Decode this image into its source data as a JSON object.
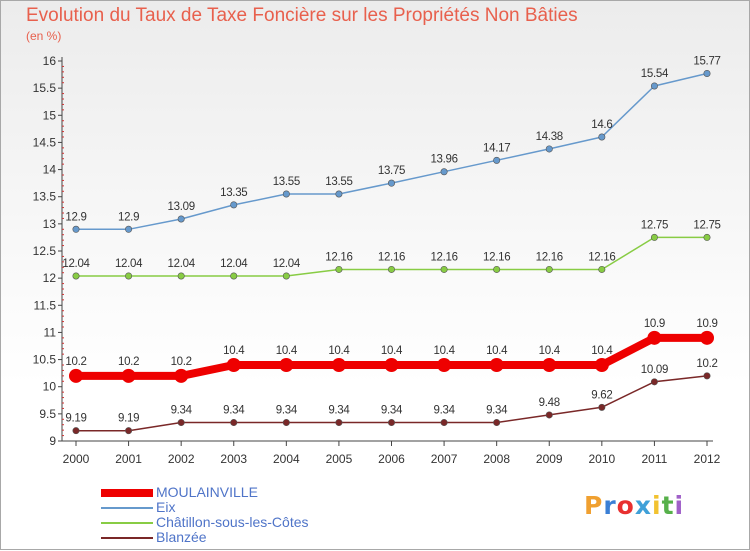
{
  "title": "Evolution du Taux de Taxe Foncière sur les Propriétés Non Bâties",
  "unit_label": "(en %)",
  "logo": {
    "text": "Proxiti",
    "letters": [
      "P",
      "r",
      "o",
      "x",
      "i",
      "t",
      "i"
    ],
    "colors": [
      "#f0a030",
      "#3a7fd5",
      "#e83030",
      "#3fa0d8",
      "#f2c230",
      "#56b04a",
      "#a060c8"
    ]
  },
  "chart_data": {
    "type": "line",
    "title": "Evolution du Taux de Taxe Foncière sur les Propriétés Non Bâties",
    "ylabel": "(en %)",
    "xlabel": "",
    "x": [
      "2000",
      "2001",
      "2002",
      "2003",
      "2004",
      "2005",
      "2006",
      "2007",
      "2008",
      "2009",
      "2010",
      "2011",
      "2012"
    ],
    "ylim": [
      9,
      16
    ],
    "y_ticks": [
      "9",
      "9.5",
      "10",
      "10.5",
      "11",
      "11.5",
      "12",
      "12.5",
      "13",
      "13.5",
      "14",
      "14.5",
      "15",
      "15.5",
      "16"
    ],
    "grid": false,
    "legend_position": "bottom-left",
    "series": [
      {
        "name": "MOULAINVILLE",
        "color": "#ee0000",
        "values": [
          10.2,
          10.2,
          10.2,
          10.4,
          10.4,
          10.4,
          10.4,
          10.4,
          10.4,
          10.4,
          10.4,
          10.9,
          10.9
        ],
        "labels": [
          "10.2",
          "10.2",
          "10.2",
          "10.4",
          "10.4",
          "10.4",
          "10.4",
          "10.4",
          "10.4",
          "10.4",
          "10.4",
          "10.9",
          "10.9"
        ]
      },
      {
        "name": "Eix",
        "color": "#6699cc",
        "values": [
          12.9,
          12.9,
          13.09,
          13.35,
          13.55,
          13.55,
          13.75,
          13.96,
          14.17,
          14.38,
          14.6,
          15.54,
          15.77
        ],
        "labels": [
          "12.9",
          "12.9",
          "13.09",
          "13.35",
          "13.55",
          "13.55",
          "13.75",
          "13.96",
          "14.17",
          "14.38",
          "14.6",
          "15.54",
          "15.77"
        ]
      },
      {
        "name": "Châtillon-sous-les-Côtes",
        "color": "#88cc44",
        "values": [
          12.04,
          12.04,
          12.04,
          12.04,
          12.04,
          12.16,
          12.16,
          12.16,
          12.16,
          12.16,
          12.16,
          12.75,
          12.75
        ],
        "labels": [
          "12.04",
          "12.04",
          "12.04",
          "12.04",
          "12.04",
          "12.16",
          "12.16",
          "12.16",
          "12.16",
          "12.16",
          "12.16",
          "12.75",
          "12.75"
        ]
      },
      {
        "name": "Blanzée",
        "color": "#7a2828",
        "values": [
          9.19,
          9.19,
          9.34,
          9.34,
          9.34,
          9.34,
          9.34,
          9.34,
          9.34,
          9.48,
          9.62,
          10.09,
          10.2
        ],
        "labels": [
          "9.19",
          "9.19",
          "9.34",
          "9.34",
          "9.34",
          "9.34",
          "9.34",
          "9.34",
          "9.34",
          "9.48",
          "9.62",
          "10.09",
          "10.2"
        ]
      }
    ]
  }
}
